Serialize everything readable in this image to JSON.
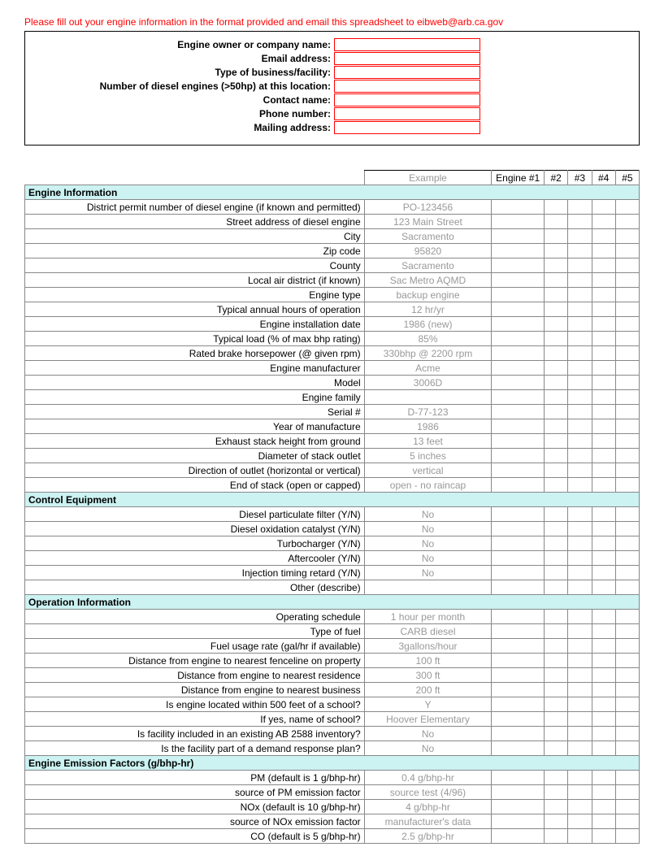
{
  "instructions": "Please fill out your engine information in the format provided and email this spreadsheet to eibweb@arb.ca.gov",
  "header_fields": [
    "Engine owner or company name:",
    "Email address:",
    "Type of business/facility:",
    "Number of diesel engines (>50hp) at this location:",
    "Contact name:",
    "Phone number:",
    "Mailing address:"
  ],
  "columns": {
    "example": "Example",
    "engine1": "Engine #1",
    "e2": "#2",
    "e3": "#3",
    "e4": "#4",
    "e5": "#5"
  },
  "sections": [
    {
      "title": "Engine Information",
      "rows": [
        {
          "label": "District permit number of diesel engine (if known and permitted)",
          "example": "PO-123456"
        },
        {
          "label": "Street address of diesel engine",
          "example": "123 Main Street"
        },
        {
          "label": "City",
          "example": "Sacramento"
        },
        {
          "label": "Zip code",
          "example": "95820"
        },
        {
          "label": "County",
          "example": "Sacramento"
        },
        {
          "label": "Local air district (if known)",
          "example": "Sac Metro AQMD"
        },
        {
          "label": "Engine type",
          "example": "backup engine"
        },
        {
          "label": "Typical annual hours of operation",
          "example": "12 hr/yr"
        },
        {
          "label": "Engine installation date",
          "example": "1986 (new)"
        },
        {
          "label": "Typical load (% of max bhp rating)",
          "example": "85%"
        },
        {
          "label": "Rated brake horsepower (@ given rpm)",
          "example": "330bhp @ 2200 rpm"
        },
        {
          "label": "Engine manufacturer",
          "example": "Acme"
        },
        {
          "label": "Model",
          "example": "3006D"
        },
        {
          "label": "Engine family",
          "example": ""
        },
        {
          "label": "Serial #",
          "example": "D-77-123"
        },
        {
          "label": "Year of manufacture",
          "example": "1986"
        },
        {
          "label": "Exhaust stack height from ground",
          "example": "13 feet"
        },
        {
          "label": "Diameter of stack outlet",
          "example": "5 inches"
        },
        {
          "label": "Direction of outlet (horizontal or vertical)",
          "example": "vertical"
        },
        {
          "label": "End of stack (open or capped)",
          "example": "open - no raincap"
        }
      ]
    },
    {
      "title": "Control Equipment",
      "rows": [
        {
          "label": "Diesel particulate filter (Y/N)",
          "example": "No"
        },
        {
          "label": "Diesel oxidation catalyst (Y/N)",
          "example": "No"
        },
        {
          "label": "Turbocharger (Y/N)",
          "example": "No"
        },
        {
          "label": "Aftercooler (Y/N)",
          "example": "No"
        },
        {
          "label": "Injection timing retard (Y/N)",
          "example": "No"
        },
        {
          "label": "Other (describe)",
          "example": ""
        }
      ]
    },
    {
      "title": "Operation Information",
      "rows": [
        {
          "label": "Operating schedule",
          "example": "1 hour per month"
        },
        {
          "label": "Type of fuel",
          "example": "CARB diesel"
        },
        {
          "label": "Fuel usage rate (gal/hr if available)",
          "example": "3gallons/hour"
        },
        {
          "label": "Distance from engine to nearest fenceline on property",
          "example": "100 ft"
        },
        {
          "label": "Distance from engine to nearest residence",
          "example": "300 ft"
        },
        {
          "label": "Distance from engine to nearest business",
          "example": "200 ft"
        },
        {
          "label": "Is engine located within 500 feet of a school?",
          "example": "Y"
        },
        {
          "label": "If yes, name of school?",
          "example": "Hoover Elementary"
        },
        {
          "label": "Is facility included in an existing AB 2588 inventory?",
          "example": "No"
        },
        {
          "label": "Is the facility part of a demand response plan?",
          "example": "No"
        }
      ]
    },
    {
      "title": "Engine Emission Factors (g/bhp-hr)",
      "rows": [
        {
          "label": "PM (default is 1 g/bhp-hr)",
          "example": "0.4 g/bhp-hr"
        },
        {
          "label": "source of PM emission factor",
          "example": "source test (4/96)"
        },
        {
          "label": "NOx (default is 10 g/bhp-hr)",
          "example": "4 g/bhp-hr"
        },
        {
          "label": "source of NOx emission factor",
          "example": "manufacturer's data"
        },
        {
          "label": "CO (default is 5 g/bhp-hr)",
          "example": "2.5 g/bhp-hr"
        }
      ]
    }
  ],
  "colors": {
    "section_bg": "#ccf2f2",
    "red": "#ff0000",
    "gray_text": "#999999",
    "border": "#888888"
  }
}
